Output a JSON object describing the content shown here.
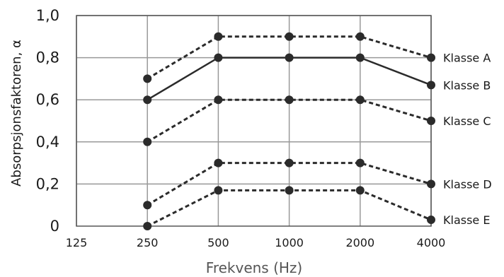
{
  "chart_data": {
    "type": "line",
    "title": "",
    "xlabel": "Frekvens (Hz)",
    "ylabel": "Absorpsjonsfaktoren, α",
    "x_categories": [
      "125",
      "250",
      "500",
      "1000",
      "2000",
      "4000"
    ],
    "y_ticks": [
      "0",
      "0,2",
      "0,4",
      "0,6",
      "0,8",
      "1,0"
    ],
    "y_tick_values": [
      0,
      0.2,
      0.4,
      0.6,
      0.8,
      1.0
    ],
    "ylim": [
      0,
      1.0
    ],
    "grid": true,
    "series": [
      {
        "name": "Klasse A",
        "style": "dashed",
        "values": [
          null,
          0.7,
          0.9,
          0.9,
          0.9,
          0.8
        ]
      },
      {
        "name": "Klasse B",
        "style": "solid",
        "values": [
          null,
          0.6,
          0.8,
          0.8,
          0.8,
          0.67
        ]
      },
      {
        "name": "Klasse C",
        "style": "dashed",
        "values": [
          null,
          0.4,
          0.6,
          0.6,
          0.6,
          0.5
        ]
      },
      {
        "name": "Klasse D",
        "style": "dashed",
        "values": [
          null,
          0.1,
          0.3,
          0.3,
          0.3,
          0.2
        ]
      },
      {
        "name": "Klasse E",
        "style": "dashed",
        "values": [
          null,
          0.0,
          0.17,
          0.17,
          0.17,
          0.03
        ]
      }
    ],
    "colors": {
      "line": "#2b2b2b",
      "grid": "#999999",
      "marker": "#2b2b2b"
    }
  }
}
